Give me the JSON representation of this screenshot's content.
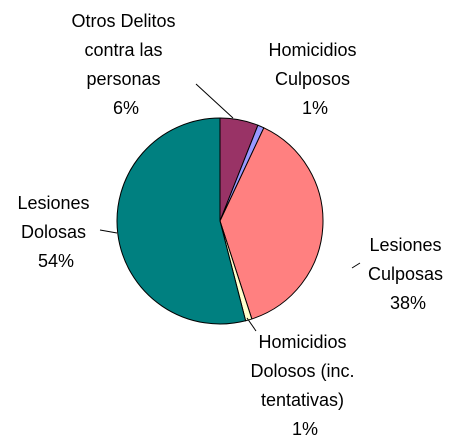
{
  "chart_data": {
    "type": "pie",
    "slices": [
      {
        "name": [
          "Otros Delitos",
          "contra las",
          "personas"
        ],
        "value": 6,
        "label": "6%",
        "color": "#993366"
      },
      {
        "name": [
          "Homicidios",
          "Culposos"
        ],
        "value": 1,
        "label": "1%",
        "color": "#9999ff"
      },
      {
        "name": [
          "Lesiones",
          "Culposas"
        ],
        "value": 38,
        "label": "38%",
        "color": "#ff8080"
      },
      {
        "name": [
          "Homicidios",
          "Dolosos (inc.",
          "tentativas)"
        ],
        "value": 1,
        "label": "1%",
        "color": "#ffffcc"
      },
      {
        "name": [
          "Lesiones",
          "Dolosas"
        ],
        "value": 54,
        "label": "54%",
        "color": "#008080"
      }
    ]
  }
}
